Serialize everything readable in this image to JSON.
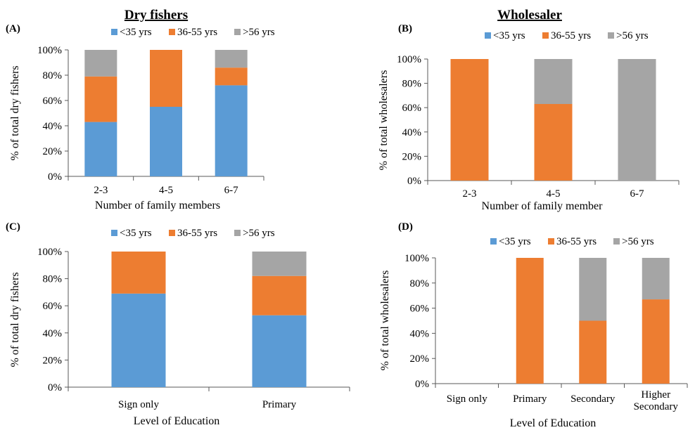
{
  "titles": {
    "left": "Dry fishers",
    "right": "Wholesaler"
  },
  "colors": {
    "lt35": "#5B9BD5",
    "mid": "#ED7D31",
    "gt56": "#A5A5A5"
  },
  "chart_data": [
    {
      "panel": "(A)",
      "type": "bar",
      "stacked": true,
      "categories": [
        "2-3",
        "4-5",
        "6-7"
      ],
      "series": [
        {
          "name": "<35 yrs",
          "values": [
            43,
            55,
            72
          ]
        },
        {
          "name": "36-55 yrs",
          "values": [
            36,
            45,
            14
          ]
        },
        {
          "name": ">56 yrs",
          "values": [
            21,
            0,
            14
          ]
        }
      ],
      "xlabel": "Number of family members",
      "ylabel": "% of total dry fishers",
      "ylim": [
        0,
        100
      ],
      "yticks": [
        "0%",
        "20%",
        "40%",
        "60%",
        "80%",
        "100%"
      ],
      "legend": "top"
    },
    {
      "panel": "(B)",
      "type": "bar",
      "stacked": true,
      "categories": [
        "2-3",
        "4-5",
        "6-7"
      ],
      "series": [
        {
          "name": "<35 yrs",
          "values": [
            0,
            0,
            0
          ]
        },
        {
          "name": "36-55 yrs",
          "values": [
            100,
            63,
            0
          ]
        },
        {
          "name": ">56 yrs",
          "values": [
            0,
            37,
            100
          ]
        }
      ],
      "xlabel": "Number of family member",
      "ylabel": "% of total wholesalers",
      "ylim": [
        0,
        100
      ],
      "yticks": [
        "0%",
        "20%",
        "40%",
        "60%",
        "80%",
        "100%"
      ],
      "legend": "top"
    },
    {
      "panel": "(C)",
      "type": "bar",
      "stacked": true,
      "categories": [
        "Sign only",
        "Primary"
      ],
      "series": [
        {
          "name": "<35 yrs",
          "values": [
            69,
            53
          ]
        },
        {
          "name": "36-55 yrs",
          "values": [
            31,
            29
          ]
        },
        {
          "name": ">56 yrs",
          "values": [
            0,
            18
          ]
        }
      ],
      "xlabel": "Level of Education",
      "ylabel": "% of total dry fishers",
      "ylim": [
        0,
        100
      ],
      "yticks": [
        "0%",
        "20%",
        "40%",
        "60%",
        "80%",
        "100%"
      ],
      "legend": "top"
    },
    {
      "panel": "(D)",
      "type": "bar",
      "stacked": true,
      "categories": [
        "Sign only",
        "Primary",
        "Secondary",
        "Higher Secondary"
      ],
      "series": [
        {
          "name": "<35 yrs",
          "values": [
            0,
            0,
            0,
            0
          ]
        },
        {
          "name": "36-55 yrs",
          "values": [
            0,
            100,
            50,
            67
          ]
        },
        {
          "name": ">56 yrs",
          "values": [
            0,
            0,
            50,
            33
          ]
        }
      ],
      "xlabel": "Level of Education",
      "ylabel": "% of total wholesalers",
      "ylim": [
        0,
        100
      ],
      "yticks": [
        "0%",
        "20%",
        "40%",
        "60%",
        "80%",
        "100%"
      ],
      "legend": "top"
    }
  ]
}
